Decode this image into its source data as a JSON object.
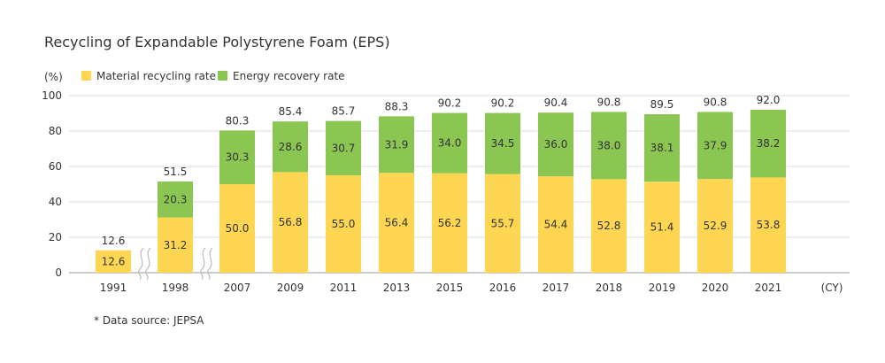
{
  "chart_data": {
    "type": "bar",
    "stacked": true,
    "title": "Recycling of Expandable Polystyrene Foam (EPS)",
    "ylabel": "(%)",
    "xunit": "(CY)",
    "ylim": [
      0,
      100
    ],
    "yticks": [
      "0",
      "20",
      "40",
      "60",
      "80",
      "100"
    ],
    "grid": true,
    "legend_position": "top-left",
    "categories": [
      "1991",
      "1998",
      "2007",
      "2009",
      "2011",
      "2013",
      "2015",
      "2016",
      "2017",
      "2018",
      "2019",
      "2020",
      "2021"
    ],
    "axis_breaks_after": [
      "1991",
      "1998"
    ],
    "series": [
      {
        "name": "Material recycling rate",
        "color": "#ffd651",
        "values": [
          12.6,
          31.2,
          50.0,
          56.8,
          55.0,
          56.4,
          56.2,
          55.7,
          54.4,
          52.8,
          51.4,
          52.9,
          53.8
        ],
        "labels": [
          "12.6",
          "31.2",
          "50.0",
          "56.8",
          "55.0",
          "56.4",
          "56.2",
          "55.7",
          "54.4",
          "52.8",
          "51.4",
          "52.9",
          "53.8"
        ]
      },
      {
        "name": "Energy recovery rate",
        "color": "#8bc552",
        "values": [
          null,
          20.3,
          30.3,
          28.6,
          30.7,
          31.9,
          34.0,
          34.5,
          36.0,
          38.0,
          38.1,
          37.9,
          38.2
        ],
        "labels": [
          "",
          "20.3",
          "30.3",
          "28.6",
          "30.7",
          "31.9",
          "34.0",
          "34.5",
          "36.0",
          "38.0",
          "38.1",
          "37.9",
          "38.2"
        ]
      }
    ],
    "totals": [
      12.6,
      51.5,
      80.3,
      85.4,
      85.7,
      88.3,
      90.2,
      90.2,
      90.4,
      90.8,
      89.5,
      90.8,
      92.0
    ],
    "total_labels": [
      "12.6",
      "51.5",
      "80.3",
      "85.4",
      "85.7",
      "88.3",
      "90.2",
      "90.2",
      "90.4",
      "90.8",
      "89.5",
      "90.8",
      "92.0"
    ],
    "note": "* Data source: JEPSA"
  }
}
